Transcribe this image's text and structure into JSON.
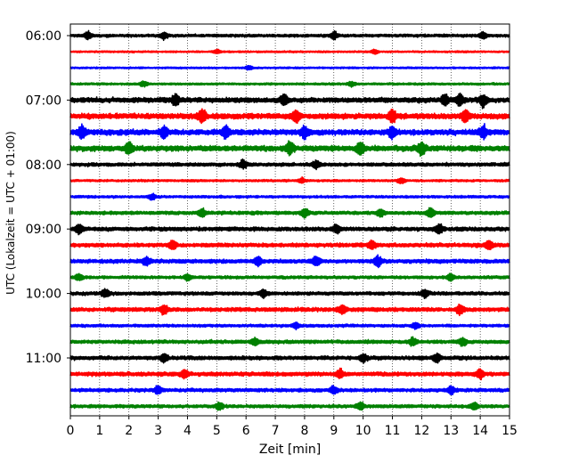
{
  "chart_data": {
    "type": "line",
    "title": "",
    "xlabel": "Zeit  [min]",
    "ylabel": "UTC (Lokalzeit = UTC + 01:00)",
    "xlim": [
      0,
      15
    ],
    "x_ticks": [
      0,
      1,
      2,
      3,
      4,
      5,
      6,
      7,
      8,
      9,
      10,
      11,
      12,
      13,
      14,
      15
    ],
    "x_tick_labels": [
      "0",
      "1",
      "2",
      "3",
      "4",
      "5",
      "6",
      "7",
      "8",
      "9",
      "10",
      "11",
      "12",
      "13",
      "14",
      "15"
    ],
    "y_tick_labels": [
      "06:00",
      "07:00",
      "08:00",
      "09:00",
      "10:00",
      "11:00"
    ],
    "y_tick_positions": [
      "06:00",
      "07:00",
      "08:00",
      "09:00",
      "10:00",
      "11:00"
    ],
    "grid": "vertical dotted lines at every minute",
    "legend": "none",
    "trace_interval_minutes": 15,
    "trace_colors_cycle": [
      "#000000",
      "#ff0000",
      "#0000ff",
      "#008000"
    ],
    "series": [
      {
        "start": "06:00",
        "color": "#000000",
        "amplitude": 0.3,
        "bursts": [
          0.6,
          3.2,
          9.0,
          14.1
        ]
      },
      {
        "start": "06:15",
        "color": "#ff0000",
        "amplitude": 0.18,
        "bursts": [
          5.0,
          10.4
        ]
      },
      {
        "start": "06:30",
        "color": "#0000ff",
        "amplitude": 0.18,
        "bursts": [
          6.1
        ]
      },
      {
        "start": "06:45",
        "color": "#008000",
        "amplitude": 0.22,
        "bursts": [
          2.5,
          9.6
        ]
      },
      {
        "start": "07:00",
        "color": "#000000",
        "amplitude": 0.5,
        "bursts": [
          3.6,
          7.3,
          12.8,
          13.3,
          14.1
        ]
      },
      {
        "start": "07:15",
        "color": "#ff0000",
        "amplitude": 0.55,
        "bursts": [
          4.5,
          7.7,
          11.0,
          13.5
        ]
      },
      {
        "start": "07:30",
        "color": "#0000ff",
        "amplitude": 0.55,
        "bursts": [
          0.4,
          3.2,
          5.3,
          8.0,
          11.0,
          14.1
        ]
      },
      {
        "start": "07:45",
        "color": "#008000",
        "amplitude": 0.55,
        "bursts": [
          2.0,
          7.5,
          9.9,
          12.0
        ]
      },
      {
        "start": "08:00",
        "color": "#000000",
        "amplitude": 0.35,
        "bursts": [
          8.4,
          5.9
        ]
      },
      {
        "start": "08:15",
        "color": "#ff0000",
        "amplitude": 0.22,
        "bursts": [
          7.9,
          11.3
        ]
      },
      {
        "start": "08:30",
        "color": "#0000ff",
        "amplitude": 0.25,
        "bursts": [
          2.8
        ]
      },
      {
        "start": "08:45",
        "color": "#008000",
        "amplitude": 0.35,
        "bursts": [
          4.5,
          8.0,
          10.6,
          12.3
        ]
      },
      {
        "start": "09:00",
        "color": "#000000",
        "amplitude": 0.4,
        "bursts": [
          0.3,
          9.1,
          12.6
        ]
      },
      {
        "start": "09:15",
        "color": "#ff0000",
        "amplitude": 0.4,
        "bursts": [
          3.5,
          10.3,
          14.3
        ]
      },
      {
        "start": "09:30",
        "color": "#0000ff",
        "amplitude": 0.4,
        "bursts": [
          2.6,
          6.4,
          8.4,
          10.5
        ]
      },
      {
        "start": "09:45",
        "color": "#008000",
        "amplitude": 0.3,
        "bursts": [
          0.3,
          4.0,
          13.0
        ]
      },
      {
        "start": "10:00",
        "color": "#000000",
        "amplitude": 0.35,
        "bursts": [
          1.2,
          6.6,
          12.1
        ]
      },
      {
        "start": "10:15",
        "color": "#ff0000",
        "amplitude": 0.4,
        "bursts": [
          3.2,
          9.3,
          13.3
        ]
      },
      {
        "start": "10:30",
        "color": "#0000ff",
        "amplitude": 0.28,
        "bursts": [
          7.7,
          11.8
        ]
      },
      {
        "start": "10:45",
        "color": "#008000",
        "amplitude": 0.35,
        "bursts": [
          6.3,
          11.7,
          13.4
        ]
      },
      {
        "start": "11:00",
        "color": "#000000",
        "amplitude": 0.38,
        "bursts": [
          3.2,
          10.0,
          12.5
        ]
      },
      {
        "start": "11:15",
        "color": "#ff0000",
        "amplitude": 0.4,
        "bursts": [
          3.9,
          9.2,
          14.0
        ]
      },
      {
        "start": "11:30",
        "color": "#0000ff",
        "amplitude": 0.35,
        "bursts": [
          3.0,
          9.0,
          13.0
        ]
      },
      {
        "start": "11:45",
        "color": "#008000",
        "amplitude": 0.33,
        "bursts": [
          5.1,
          9.9,
          13.8
        ]
      }
    ]
  }
}
